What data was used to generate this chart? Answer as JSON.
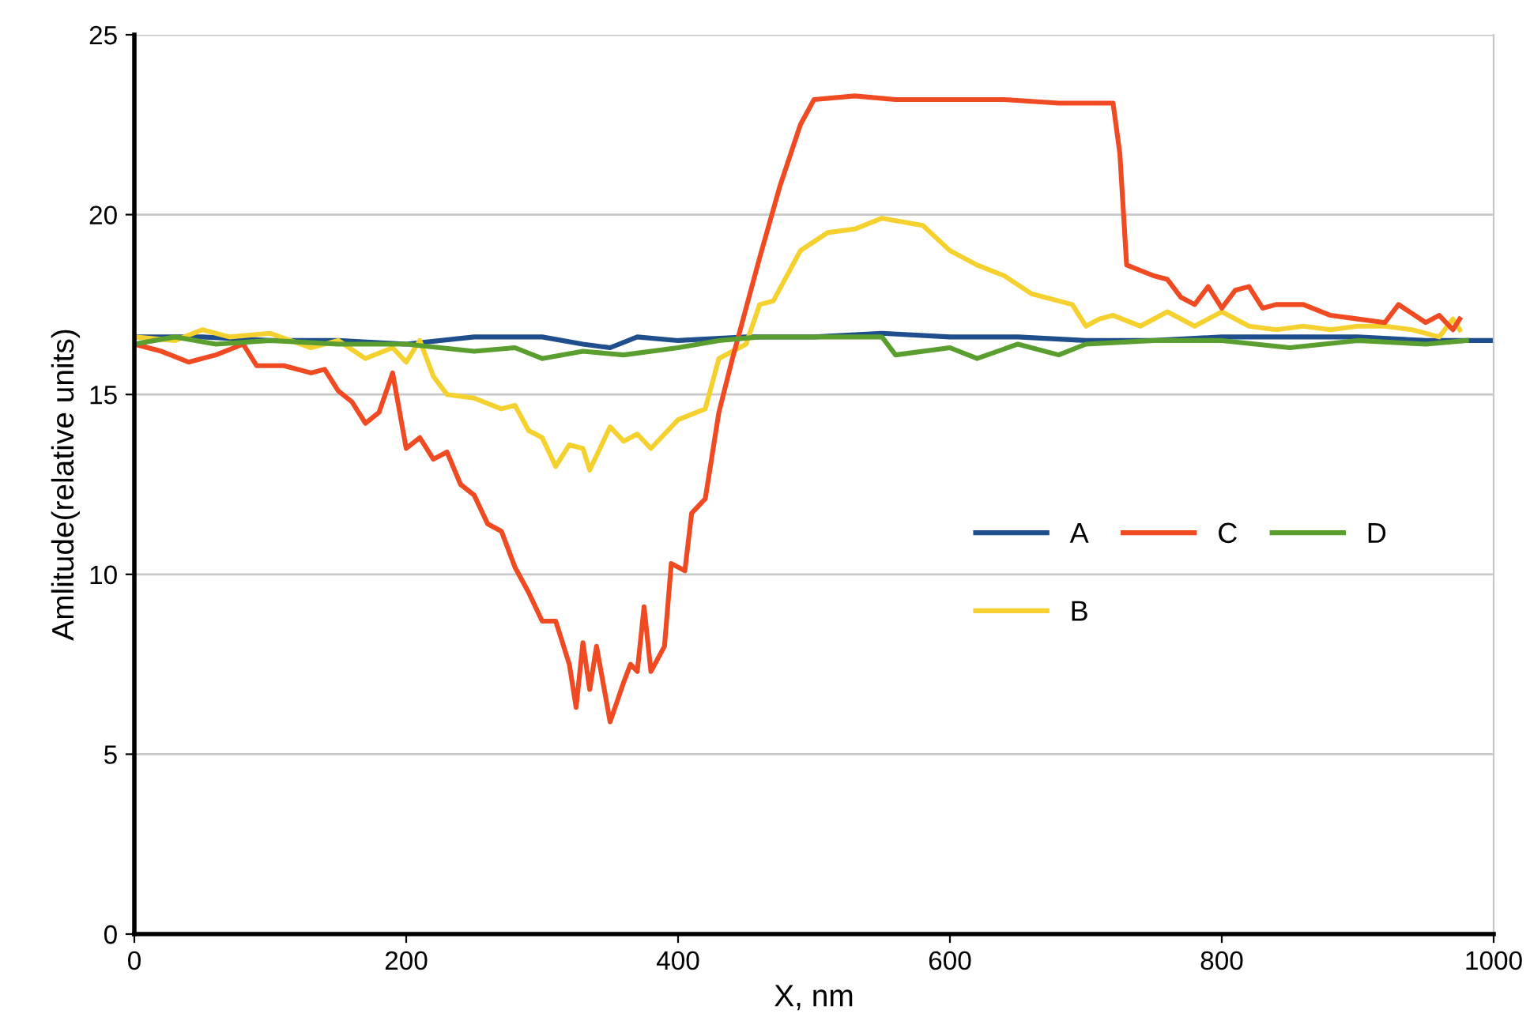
{
  "chart_data": {
    "type": "line",
    "xlabel": "X, nm",
    "ylabel": "Amlitude(relative units)",
    "xlim": [
      0,
      1000
    ],
    "xticks": [
      0,
      200,
      400,
      600,
      800,
      1000
    ],
    "ylim": [
      0,
      25
    ],
    "yticks": [
      0,
      5,
      10,
      15,
      20,
      25
    ],
    "grid": "y",
    "legend": "right",
    "marker": "none",
    "line_style": "solid",
    "series": [
      {
        "name": "A",
        "color": "#1f4e8c",
        "x": [
          0,
          50,
          100,
          150,
          200,
          250,
          300,
          330,
          350,
          370,
          400,
          450,
          500,
          550,
          600,
          650,
          700,
          750,
          800,
          850,
          900,
          950,
          1000
        ],
        "values": [
          16.6,
          16.6,
          16.5,
          16.5,
          16.4,
          16.6,
          16.6,
          16.4,
          16.3,
          16.6,
          16.5,
          16.6,
          16.6,
          16.7,
          16.6,
          16.6,
          16.5,
          16.5,
          16.6,
          16.6,
          16.6,
          16.5,
          16.5
        ]
      },
      {
        "name": "B",
        "color": "#f5d130",
        "x": [
          0,
          30,
          50,
          70,
          100,
          130,
          150,
          170,
          190,
          200,
          210,
          220,
          230,
          250,
          270,
          280,
          290,
          300,
          310,
          320,
          330,
          335,
          350,
          360,
          370,
          380,
          400,
          420,
          430,
          450,
          460,
          470,
          490,
          510,
          530,
          550,
          580,
          600,
          620,
          640,
          660,
          690,
          700,
          710,
          720,
          740,
          760,
          780,
          800,
          820,
          840,
          860,
          880,
          900,
          920,
          940,
          960,
          970,
          975
        ],
        "values": [
          16.6,
          16.5,
          16.8,
          16.6,
          16.7,
          16.3,
          16.5,
          16.0,
          16.3,
          15.9,
          16.5,
          15.5,
          15.0,
          14.9,
          14.6,
          14.7,
          14.0,
          13.8,
          13.0,
          13.6,
          13.5,
          12.9,
          14.1,
          13.7,
          13.9,
          13.5,
          14.3,
          14.6,
          16.0,
          16.4,
          17.5,
          17.6,
          19.0,
          19.5,
          19.6,
          19.9,
          19.7,
          19.0,
          18.6,
          18.3,
          17.8,
          17.5,
          16.9,
          17.1,
          17.2,
          16.9,
          17.3,
          16.9,
          17.3,
          16.9,
          16.8,
          16.9,
          16.8,
          16.9,
          16.9,
          16.8,
          16.6,
          17.1,
          16.8
        ]
      },
      {
        "name": "C",
        "color": "#f04a23",
        "x": [
          0,
          20,
          40,
          60,
          80,
          90,
          110,
          130,
          140,
          150,
          160,
          170,
          180,
          190,
          200,
          210,
          220,
          230,
          240,
          250,
          260,
          270,
          280,
          290,
          300,
          310,
          320,
          325,
          330,
          335,
          340,
          350,
          360,
          365,
          370,
          375,
          380,
          390,
          395,
          405,
          410,
          420,
          430,
          440,
          450,
          460,
          475,
          490,
          500,
          530,
          560,
          600,
          640,
          680,
          720,
          725,
          730,
          750,
          760,
          770,
          780,
          790,
          800,
          810,
          820,
          830,
          840,
          860,
          880,
          900,
          920,
          930,
          950,
          960,
          970,
          975
        ],
        "values": [
          16.4,
          16.2,
          15.9,
          16.1,
          16.4,
          15.8,
          15.8,
          15.6,
          15.7,
          15.1,
          14.8,
          14.2,
          14.5,
          15.6,
          13.5,
          13.8,
          13.2,
          13.4,
          12.5,
          12.2,
          11.4,
          11.2,
          10.2,
          9.5,
          8.7,
          8.7,
          7.5,
          6.3,
          8.1,
          6.8,
          8.0,
          5.9,
          7.0,
          7.5,
          7.3,
          9.1,
          7.3,
          8.0,
          10.3,
          10.1,
          11.7,
          12.1,
          14.5,
          16.0,
          17.4,
          18.8,
          20.8,
          22.5,
          23.2,
          23.3,
          23.2,
          23.2,
          23.2,
          23.1,
          23.1,
          21.7,
          18.6,
          18.3,
          18.2,
          17.7,
          17.5,
          18.0,
          17.4,
          17.9,
          18.0,
          17.4,
          17.5,
          17.5,
          17.2,
          17.1,
          17.0,
          17.5,
          17.0,
          17.2,
          16.8,
          17.1
        ]
      },
      {
        "name": "D",
        "color": "#5a9e2f",
        "x": [
          0,
          30,
          60,
          100,
          150,
          200,
          250,
          280,
          300,
          330,
          360,
          400,
          430,
          460,
          500,
          550,
          560,
          600,
          620,
          650,
          680,
          700,
          750,
          800,
          850,
          900,
          950,
          980
        ],
        "values": [
          16.4,
          16.6,
          16.4,
          16.5,
          16.4,
          16.4,
          16.2,
          16.3,
          16.0,
          16.2,
          16.1,
          16.3,
          16.5,
          16.6,
          16.6,
          16.6,
          16.1,
          16.3,
          16.0,
          16.4,
          16.1,
          16.4,
          16.5,
          16.5,
          16.3,
          16.5,
          16.4,
          16.5
        ]
      }
    ]
  }
}
